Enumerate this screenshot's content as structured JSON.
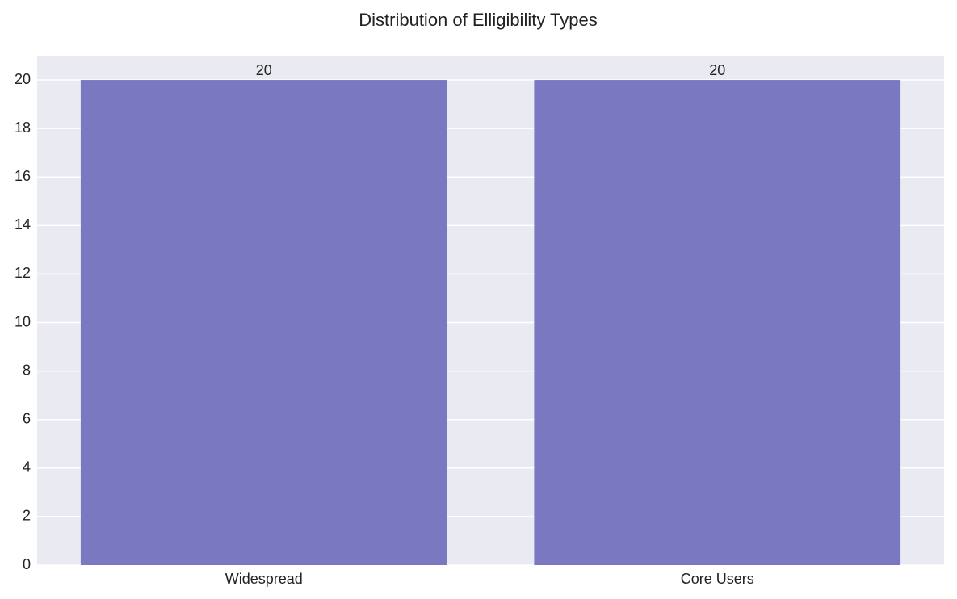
{
  "chart_data": {
    "type": "bar",
    "title": "Distribution of Elligibility Types",
    "categories": [
      "Widespread",
      "Core Users"
    ],
    "values": [
      20,
      20
    ],
    "color": "#7b78c2",
    "ylim": [
      0,
      21
    ],
    "yticks": [
      0,
      2,
      4,
      6,
      8,
      10,
      12,
      14,
      16,
      18,
      20
    ],
    "grid": true
  }
}
